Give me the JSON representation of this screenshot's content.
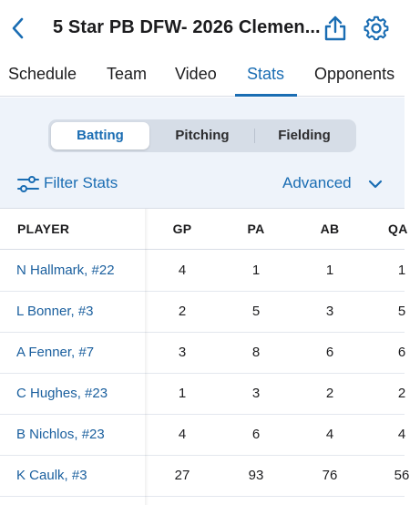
{
  "header": {
    "title": "5 Star PB DFW- 2026 Clemen...",
    "back_icon": "chevron-left-icon",
    "share_icon": "share-icon",
    "settings_icon": "gear-icon"
  },
  "tabs": [
    {
      "label": "Schedule",
      "active": false
    },
    {
      "label": "Team",
      "active": false
    },
    {
      "label": "Video",
      "active": false
    },
    {
      "label": "Stats",
      "active": true
    },
    {
      "label": "Opponents",
      "active": false
    }
  ],
  "segments": [
    {
      "label": "Batting",
      "active": true
    },
    {
      "label": "Pitching",
      "active": false
    },
    {
      "label": "Fielding",
      "active": false
    }
  ],
  "filter": {
    "label": "Filter Stats",
    "advanced_label": "Advanced"
  },
  "table": {
    "columns": [
      "PLAYER",
      "GP",
      "PA",
      "AB",
      "QA"
    ],
    "rows": [
      {
        "player": "N Hallmark, #22",
        "gp": "4",
        "pa": "1",
        "ab": "1",
        "qa": "1"
      },
      {
        "player": "L Bonner, #3",
        "gp": "2",
        "pa": "5",
        "ab": "3",
        "qa": "5"
      },
      {
        "player": "A Fenner, #7",
        "gp": "3",
        "pa": "8",
        "ab": "6",
        "qa": "6"
      },
      {
        "player": "C Hughes, #23",
        "gp": "1",
        "pa": "3",
        "ab": "2",
        "qa": "2"
      },
      {
        "player": "B Nichlos, #23",
        "gp": "4",
        "pa": "6",
        "ab": "4",
        "qa": "4"
      },
      {
        "player": "K Caulk, #3",
        "gp": "27",
        "pa": "93",
        "ab": "76",
        "qa": "56"
      }
    ]
  },
  "colors": {
    "accent": "#1a6db3",
    "filter_background": "#eef3fa"
  }
}
